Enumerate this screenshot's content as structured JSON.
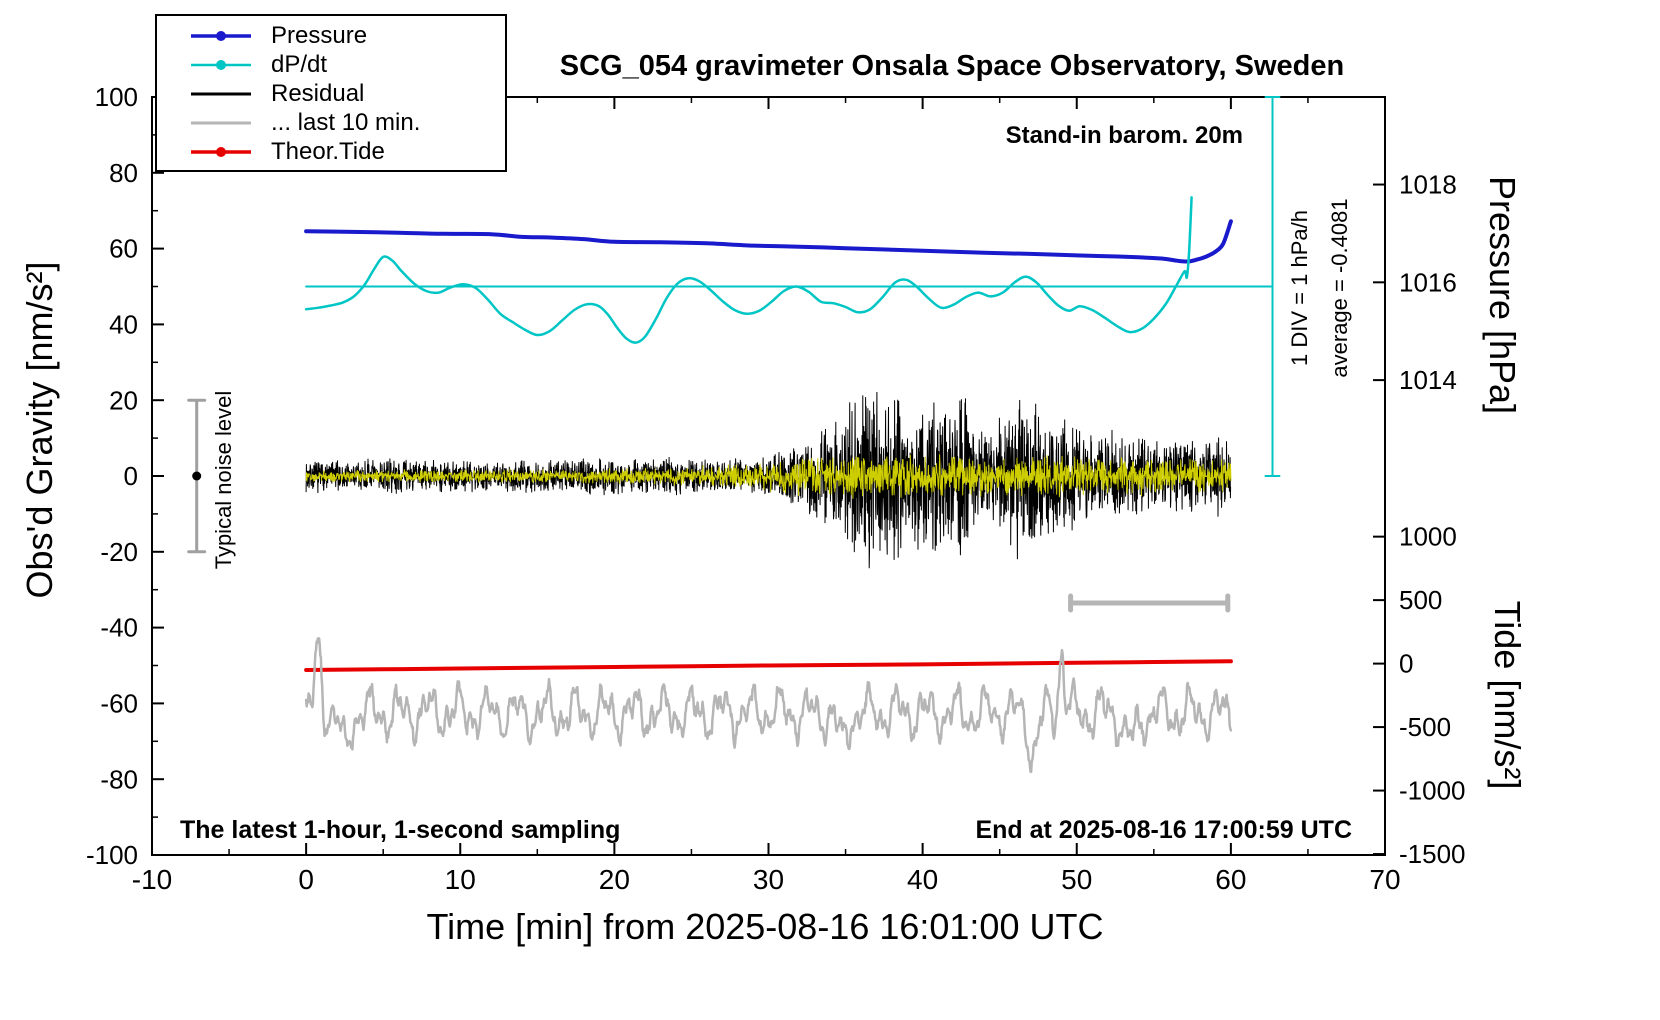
{
  "title": "SCG_054 gravimeter Onsala Space Observatory, Sweden",
  "axes": {
    "x_label": "Time [min] from 2025-08-16 16:01:00 UTC",
    "y_left_label": "Obs'd Gravity [nm/s²]",
    "y_right_top_label": "Pressure [hPa]",
    "y_right_bottom_label": "Tide [nm/s²]"
  },
  "annotations": {
    "barom": "Stand-in barom. 20m",
    "sampling": "The latest 1-hour, 1-second sampling",
    "end_time": "End at 2025-08-16 17:00:59 UTC",
    "div_scale": "1 DIV = 1 hPa/h",
    "average": "average = -0.4081",
    "noise_level": "Typical noise level"
  },
  "legend": {
    "items": [
      {
        "label": "Pressure",
        "color": "#1a1acd",
        "marker": "dot",
        "weight": 3.5
      },
      {
        "label": "dP/dt",
        "color": "#00c5c5",
        "marker": "dot",
        "weight": 2.5
      },
      {
        "label": "Residual",
        "color": "#000000",
        "marker": "line",
        "weight": 3
      },
      {
        "label": "... last 10 min.",
        "color": "#b5b5b5",
        "marker": "line",
        "weight": 3
      },
      {
        "label": "Theor.Tide",
        "color": "#e60000",
        "marker": "dot",
        "weight": 3.5
      }
    ]
  },
  "chart_data": {
    "type": "line",
    "title": "SCG_054 gravimeter Onsala Space Observatory, Sweden",
    "xlabel": "Time [min] from 2025-08-16 16:01:00 UTC",
    "ylabel": "Obs'd Gravity [nm/s²]",
    "xlim": [
      -10,
      70
    ],
    "ylim_left": [
      -100,
      100
    ],
    "x_ticks": [
      -10,
      0,
      10,
      20,
      30,
      40,
      50,
      60,
      70
    ],
    "x_minor_step": 5,
    "y_ticks": [
      -100,
      -80,
      -60,
      -40,
      -20,
      0,
      20,
      40,
      60,
      80,
      100
    ],
    "y_minor_step": 10,
    "pressure_axis": {
      "label": "Pressure [hPa]",
      "ticks": [
        1014,
        1016,
        1018
      ],
      "ref_value": 1016,
      "ref_left_y": 51.1,
      "left_y_per_unit": 12.9
    },
    "tide_axis": {
      "label": "Tide [nm/s²]",
      "ticks": [
        1000,
        500,
        0,
        -500,
        -1000,
        -1500
      ],
      "ref_value": 0,
      "ref_left_y": -49.5,
      "left_y_per_unit": 0.0335
    },
    "series": [
      {
        "name": "dpdt-reference",
        "type": "hline",
        "color": "#00c5c5",
        "width": 2,
        "y": 50,
        "x0": 0,
        "x1": 62.7
      },
      {
        "name": "pressure-div-scale",
        "type": "vdiv",
        "color": "#00c5c5",
        "width": 2,
        "x": 62.7,
        "y0": 0,
        "y1": 100,
        "cap": 7
      },
      {
        "name": "pressure",
        "type": "line",
        "smooth": true,
        "color": "#1a1acd",
        "width": 4,
        "points": [
          [
            0,
            64.6
          ],
          [
            3,
            64.4
          ],
          [
            6,
            64.2
          ],
          [
            9,
            63.9
          ],
          [
            12,
            63.8
          ],
          [
            14,
            63.1
          ],
          [
            16,
            62.9
          ],
          [
            18,
            62.5
          ],
          [
            20,
            61.8
          ],
          [
            23,
            61.7
          ],
          [
            26,
            61.4
          ],
          [
            29,
            60.8
          ],
          [
            32,
            60.5
          ],
          [
            35,
            60.1
          ],
          [
            38,
            59.7
          ],
          [
            41,
            59.3
          ],
          [
            44,
            58.9
          ],
          [
            47,
            58.6
          ],
          [
            50,
            58.2
          ],
          [
            52,
            58.0
          ],
          [
            54,
            57.7
          ],
          [
            55.5,
            57.4
          ],
          [
            56.5,
            56.8
          ],
          [
            57.2,
            56.6
          ],
          [
            57.8,
            57.1
          ],
          [
            58.4,
            57.9
          ],
          [
            59,
            59.2
          ],
          [
            59.5,
            61.3
          ],
          [
            60,
            67.2
          ]
        ]
      },
      {
        "name": "dpdt",
        "type": "line",
        "smooth": true,
        "color": "#00c5c5",
        "width": 2.5,
        "points": [
          [
            0,
            44
          ],
          [
            0.8,
            44.4
          ],
          [
            1.6,
            45
          ],
          [
            2.4,
            45.8
          ],
          [
            3.1,
            47.4
          ],
          [
            3.8,
            50.5
          ],
          [
            4.4,
            54.5
          ],
          [
            5,
            57.8
          ],
          [
            5.6,
            56.8
          ],
          [
            6.2,
            54
          ],
          [
            7,
            50.8
          ],
          [
            7.8,
            48.8
          ],
          [
            8.6,
            48.4
          ],
          [
            9.4,
            49.8
          ],
          [
            10.2,
            50.6
          ],
          [
            11,
            49.6
          ],
          [
            11.8,
            46.5
          ],
          [
            12.6,
            42.8
          ],
          [
            13.4,
            40.6
          ],
          [
            14.2,
            38.6
          ],
          [
            15,
            37.2
          ],
          [
            15.8,
            38.2
          ],
          [
            16.6,
            41
          ],
          [
            17.4,
            43.8
          ],
          [
            18.2,
            45.3
          ],
          [
            19,
            44.8
          ],
          [
            19.6,
            42.5
          ],
          [
            20.2,
            39
          ],
          [
            20.8,
            36.2
          ],
          [
            21.4,
            35.2
          ],
          [
            22,
            36.8
          ],
          [
            22.7,
            41.5
          ],
          [
            23.4,
            47
          ],
          [
            24.1,
            50.8
          ],
          [
            24.8,
            52.2
          ],
          [
            25.5,
            51.4
          ],
          [
            26.2,
            49.2
          ],
          [
            27,
            46.2
          ],
          [
            27.8,
            43.8
          ],
          [
            28.6,
            42.8
          ],
          [
            29.4,
            43.6
          ],
          [
            30.2,
            46
          ],
          [
            31,
            48.8
          ],
          [
            31.8,
            50
          ],
          [
            32.6,
            48.6
          ],
          [
            33.4,
            46
          ],
          [
            34.2,
            45.6
          ],
          [
            35,
            44.6
          ],
          [
            35.8,
            43.2
          ],
          [
            36.6,
            44
          ],
          [
            37.4,
            47.2
          ],
          [
            38.2,
            51
          ],
          [
            38.9,
            51.8
          ],
          [
            39.6,
            50
          ],
          [
            40.4,
            46.8
          ],
          [
            41.2,
            44.4
          ],
          [
            42,
            45.2
          ],
          [
            42.8,
            47.2
          ],
          [
            43.6,
            48.4
          ],
          [
            44.4,
            47.4
          ],
          [
            45.2,
            48.4
          ],
          [
            46,
            51.2
          ],
          [
            46.7,
            52.6
          ],
          [
            47.4,
            51
          ],
          [
            48.1,
            47.8
          ],
          [
            48.8,
            45
          ],
          [
            49.5,
            43.6
          ],
          [
            50.2,
            44.8
          ],
          [
            51,
            43.8
          ],
          [
            51.8,
            41.8
          ],
          [
            52.6,
            39.6
          ],
          [
            53.4,
            38
          ],
          [
            54.2,
            38.8
          ],
          [
            55,
            41.5
          ],
          [
            55.8,
            45.5
          ],
          [
            56.5,
            50.5
          ],
          [
            57,
            54
          ],
          [
            57.15,
            52.5
          ],
          [
            57.3,
            60
          ],
          [
            57.45,
            73.5
          ]
        ]
      },
      {
        "name": "residual",
        "type": "noise",
        "color": "#000000",
        "width": 1,
        "x0": 0,
        "x1": 60,
        "dt": 0.016667,
        "base": 0,
        "seed": 7,
        "envelope": [
          [
            0,
            4.5
          ],
          [
            6,
            4.8
          ],
          [
            12,
            4.5
          ],
          [
            18,
            5
          ],
          [
            23,
            5.5
          ],
          [
            25,
            4.6
          ],
          [
            28,
            5
          ],
          [
            30,
            6
          ],
          [
            31,
            7
          ],
          [
            32,
            9
          ],
          [
            33,
            12
          ],
          [
            33.6,
            15
          ],
          [
            34.2,
            13
          ],
          [
            34.8,
            18
          ],
          [
            35.4,
            23
          ],
          [
            36,
            26
          ],
          [
            36.6,
            29
          ],
          [
            37.2,
            26
          ],
          [
            37.8,
            23
          ],
          [
            38.4,
            24
          ],
          [
            39,
            19
          ],
          [
            40,
            20
          ],
          [
            40.6,
            23
          ],
          [
            41.2,
            20
          ],
          [
            42,
            22
          ],
          [
            42.6,
            24
          ],
          [
            43.2,
            19
          ],
          [
            44,
            15
          ],
          [
            44.8,
            16
          ],
          [
            45.6,
            20
          ],
          [
            46.2,
            25
          ],
          [
            46.8,
            28
          ],
          [
            47.4,
            21
          ],
          [
            48,
            16
          ],
          [
            48.6,
            18
          ],
          [
            49.2,
            19
          ],
          [
            50,
            14
          ],
          [
            51,
            12
          ],
          [
            52,
            13.5
          ],
          [
            53,
            11
          ],
          [
            54,
            12.5
          ],
          [
            55,
            10
          ],
          [
            56,
            9
          ],
          [
            57,
            11.5
          ],
          [
            58,
            9
          ],
          [
            59,
            12
          ],
          [
            60,
            10
          ]
        ]
      },
      {
        "name": "residual-recent-overlay",
        "type": "noise",
        "color": "#cdcd00",
        "width": 1,
        "x0": 0,
        "x1": 60,
        "dt": 0.025,
        "base": 0,
        "seed": 12,
        "envelope": [
          [
            0,
            1.6
          ],
          [
            10,
            1.8
          ],
          [
            20,
            2
          ],
          [
            24,
            2.6
          ],
          [
            27,
            3.2
          ],
          [
            30,
            4
          ],
          [
            32,
            5.5
          ],
          [
            35,
            6
          ],
          [
            38,
            6.5
          ],
          [
            41,
            6
          ],
          [
            44,
            5.6
          ],
          [
            47,
            6.4
          ],
          [
            50,
            5.8
          ],
          [
            53,
            5.4
          ],
          [
            56,
            5
          ],
          [
            60,
            4.8
          ]
        ]
      },
      {
        "name": "theor-tide",
        "type": "line",
        "smooth": true,
        "color": "#e60000",
        "width": 4,
        "points": [
          [
            0,
            -51.2
          ],
          [
            10,
            -50.8
          ],
          [
            20,
            -50.4
          ],
          [
            30,
            -50.0
          ],
          [
            40,
            -49.7
          ],
          [
            50,
            -49.3
          ],
          [
            60,
            -48.9
          ]
        ]
      },
      {
        "name": "last-10-min",
        "type": "osc",
        "color": "#b5b5b5",
        "width": 2.5,
        "x0": 0,
        "x1": 60,
        "dt": 0.04,
        "base": -62.5,
        "noise": 1.2,
        "seed": 3,
        "harmonics": [
          [
            4.2,
            1.9,
            0.3
          ],
          [
            2.8,
            0.83,
            1.7
          ],
          [
            1.5,
            0.37,
            4.0
          ]
        ],
        "bumps": [
          [
            0.8,
            17,
            0.2
          ],
          [
            2.5,
            -10,
            0.3
          ],
          [
            34.8,
            -8,
            0.3
          ],
          [
            47.2,
            -10,
            0.3
          ],
          [
            49.0,
            16,
            0.18
          ],
          [
            53.5,
            -8,
            0.4
          ]
        ]
      },
      {
        "name": "typical-noise-errorbar",
        "type": "errorbar",
        "color": "#a0a0a0",
        "width": 3,
        "x": -7.1,
        "y0": -20,
        "y1": 20,
        "cap": 8,
        "dot": {
          "y": 0,
          "r": 4.5,
          "color": "#000000"
        }
      },
      {
        "name": "ten-minute-scalebar",
        "type": "scalebar",
        "color": "#b5b5b5",
        "width": 5,
        "x0": 49.6,
        "x1": 59.8,
        "y": -33.5,
        "cap": 7
      }
    ]
  }
}
